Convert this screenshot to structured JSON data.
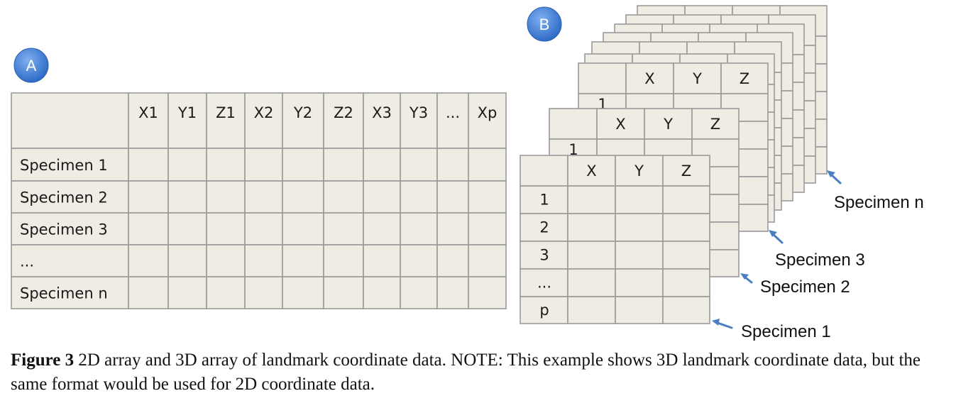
{
  "badges": {
    "a": "A",
    "b": "B"
  },
  "table_2d": {
    "columns": [
      "X1",
      "Y1",
      "Z1",
      "X2",
      "Y2",
      "Z2",
      "X3",
      "Y3",
      "...",
      "Xp"
    ],
    "rows": [
      "Specimen 1",
      "Specimen 2",
      "Specimen 3",
      "...",
      "Specimen n"
    ]
  },
  "table_3d": {
    "columns": [
      "X",
      "Y",
      "Z"
    ],
    "rows": [
      "1",
      "2",
      "3",
      "...",
      "p"
    ],
    "back_first_row": "1"
  },
  "specimen_labels": {
    "n": "Specimen n",
    "s3": "Specimen 3",
    "s2": "Specimen 2",
    "s1": "Specimen 1"
  },
  "caption": {
    "label": "Figure 3",
    "text": " 2D array and 3D array of landmark coordinate data. NOTE: This example shows 3D landmark coordinate data, but the same format would be used for 2D coordinate data."
  },
  "colors": {
    "cell_fill": "#efece4",
    "grid": "#9a9a9a",
    "badge": "#3f7fd6",
    "arrow": "#4a7ec0"
  }
}
